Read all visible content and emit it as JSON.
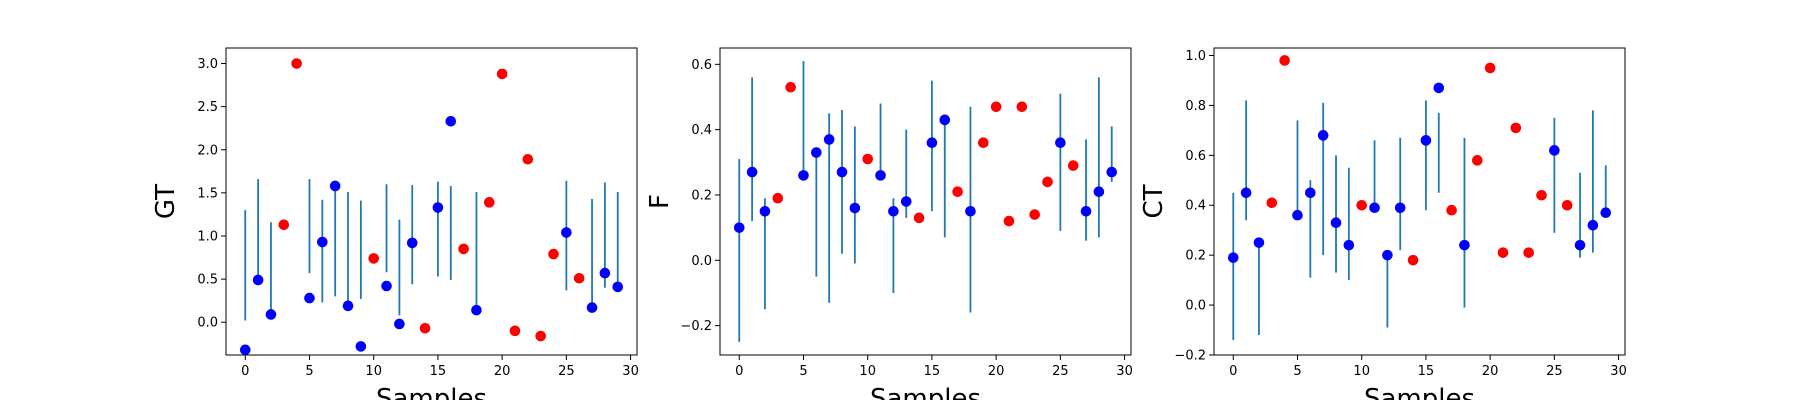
{
  "chart_data": [
    {
      "type": "scatter",
      "ylabel": "GT",
      "xlabel": "Samples",
      "xlim": [
        -1.5,
        30.5
      ],
      "ylim": [
        -0.38,
        3.18
      ],
      "xticks": [
        0,
        5,
        10,
        15,
        20,
        25,
        30
      ],
      "yticks": [
        0.0,
        0.5,
        1.0,
        1.5,
        2.0,
        2.5,
        3.0
      ],
      "ytick_labels": [
        "0.0",
        "0.5",
        "1.0",
        "1.5",
        "2.0",
        "2.5",
        "3.0"
      ],
      "grid": false,
      "colors": {
        "blue": "#0000ff",
        "red": "#ff0000",
        "errorbar": "#1f77b4"
      },
      "x": [
        0,
        1,
        2,
        3,
        4,
        5,
        6,
        7,
        8,
        9,
        10,
        11,
        12,
        13,
        14,
        15,
        16,
        17,
        18,
        19,
        20,
        21,
        22,
        23,
        24,
        25,
        26,
        27,
        28,
        29
      ],
      "y": [
        -0.32,
        0.49,
        0.09,
        1.13,
        3.0,
        0.28,
        0.93,
        1.58,
        0.19,
        -0.28,
        0.74,
        0.42,
        -0.02,
        0.92,
        -0.07,
        1.33,
        2.33,
        0.85,
        0.14,
        1.39,
        2.88,
        -0.1,
        1.89,
        -0.16,
        0.79,
        1.04,
        0.51,
        0.17,
        0.57,
        0.41
      ],
      "point_color": [
        "blue",
        "blue",
        "blue",
        "red",
        "red",
        "blue",
        "blue",
        "blue",
        "blue",
        "blue",
        "red",
        "blue",
        "blue",
        "blue",
        "red",
        "blue",
        "blue",
        "red",
        "blue",
        "red",
        "red",
        "red",
        "red",
        "red",
        "red",
        "blue",
        "red",
        "blue",
        "blue",
        "blue"
      ],
      "errorbars": [
        {
          "x": 0,
          "low": 0.02,
          "high": 1.3
        },
        {
          "x": 1,
          "low": 0.49,
          "high": 1.66
        },
        {
          "x": 2,
          "low": 0.09,
          "high": 1.16
        },
        {
          "x": 5,
          "low": 0.57,
          "high": 1.66
        },
        {
          "x": 6,
          "low": 0.23,
          "high": 1.42
        },
        {
          "x": 7,
          "low": 0.3,
          "high": 1.56
        },
        {
          "x": 8,
          "low": 0.19,
          "high": 1.51
        },
        {
          "x": 9,
          "low": 0.27,
          "high": 1.41
        },
        {
          "x": 11,
          "low": 0.58,
          "high": 1.6
        },
        {
          "x": 12,
          "low": 0.08,
          "high": 1.19
        },
        {
          "x": 13,
          "low": 0.44,
          "high": 1.59
        },
        {
          "x": 15,
          "low": 0.53,
          "high": 1.63
        },
        {
          "x": 16,
          "low": 0.49,
          "high": 1.58
        },
        {
          "x": 18,
          "low": 0.14,
          "high": 1.51
        },
        {
          "x": 25,
          "low": 0.37,
          "high": 1.64
        },
        {
          "x": 27,
          "low": 0.17,
          "high": 1.43
        },
        {
          "x": 28,
          "low": 0.4,
          "high": 1.62
        },
        {
          "x": 29,
          "low": 0.41,
          "high": 1.51
        }
      ]
    },
    {
      "type": "scatter",
      "ylabel": "F",
      "xlabel": "Samples",
      "xlim": [
        -1.5,
        30.5
      ],
      "ylim": [
        -0.29,
        0.65
      ],
      "xticks": [
        0,
        5,
        10,
        15,
        20,
        25,
        30
      ],
      "yticks": [
        -0.2,
        0.0,
        0.2,
        0.4,
        0.6
      ],
      "ytick_labels": [
        "−0.2",
        "0.0",
        "0.2",
        "0.4",
        "0.6"
      ],
      "grid": false,
      "colors": {
        "blue": "#0000ff",
        "red": "#ff0000",
        "errorbar": "#1f77b4"
      },
      "x": [
        0,
        1,
        2,
        3,
        4,
        5,
        6,
        7,
        8,
        9,
        10,
        11,
        12,
        13,
        14,
        15,
        16,
        17,
        18,
        19,
        20,
        21,
        22,
        23,
        24,
        25,
        26,
        27,
        28,
        29
      ],
      "y": [
        0.1,
        0.27,
        0.15,
        0.19,
        0.53,
        0.26,
        0.33,
        0.37,
        0.27,
        0.16,
        0.31,
        0.26,
        0.15,
        0.18,
        0.13,
        0.36,
        0.43,
        0.21,
        0.15,
        0.36,
        0.47,
        0.12,
        0.47,
        0.14,
        0.24,
        0.36,
        0.29,
        0.15,
        0.21,
        0.27
      ],
      "point_color": [
        "blue",
        "blue",
        "blue",
        "red",
        "red",
        "blue",
        "blue",
        "blue",
        "blue",
        "blue",
        "red",
        "blue",
        "blue",
        "blue",
        "red",
        "blue",
        "blue",
        "red",
        "blue",
        "red",
        "red",
        "red",
        "red",
        "red",
        "red",
        "blue",
        "red",
        "blue",
        "blue",
        "blue"
      ],
      "errorbars": [
        {
          "x": 0,
          "low": -0.25,
          "high": 0.31
        },
        {
          "x": 1,
          "low": 0.12,
          "high": 0.56
        },
        {
          "x": 2,
          "low": -0.15,
          "high": 0.19
        },
        {
          "x": 5,
          "low": 0.26,
          "high": 0.61
        },
        {
          "x": 6,
          "low": -0.05,
          "high": 0.34
        },
        {
          "x": 7,
          "low": -0.13,
          "high": 0.45
        },
        {
          "x": 8,
          "low": 0.02,
          "high": 0.46
        },
        {
          "x": 9,
          "low": -0.01,
          "high": 0.41
        },
        {
          "x": 11,
          "low": 0.26,
          "high": 0.48
        },
        {
          "x": 12,
          "low": -0.1,
          "high": 0.19
        },
        {
          "x": 13,
          "low": 0.13,
          "high": 0.4
        },
        {
          "x": 15,
          "low": 0.15,
          "high": 0.55
        },
        {
          "x": 16,
          "low": 0.07,
          "high": 0.44
        },
        {
          "x": 18,
          "low": -0.16,
          "high": 0.47
        },
        {
          "x": 25,
          "low": 0.09,
          "high": 0.51
        },
        {
          "x": 27,
          "low": 0.06,
          "high": 0.37
        },
        {
          "x": 28,
          "low": 0.07,
          "high": 0.56
        },
        {
          "x": 29,
          "low": 0.24,
          "high": 0.41
        }
      ]
    },
    {
      "type": "scatter",
      "ylabel": "CT",
      "xlabel": "Samples",
      "xlim": [
        -1.5,
        30.5
      ],
      "ylim": [
        -0.2,
        1.03
      ],
      "xticks": [
        0,
        5,
        10,
        15,
        20,
        25,
        30
      ],
      "yticks": [
        -0.2,
        0.0,
        0.2,
        0.4,
        0.6,
        0.8,
        1.0
      ],
      "ytick_labels": [
        "−0.2",
        "0.0",
        "0.2",
        "0.4",
        "0.6",
        "0.8",
        "1.0"
      ],
      "grid": false,
      "colors": {
        "blue": "#0000ff",
        "red": "#ff0000",
        "errorbar": "#1f77b4"
      },
      "x": [
        0,
        1,
        2,
        3,
        4,
        5,
        6,
        7,
        8,
        9,
        10,
        11,
        12,
        13,
        14,
        15,
        16,
        17,
        18,
        19,
        20,
        21,
        22,
        23,
        24,
        25,
        26,
        27,
        28,
        29
      ],
      "y": [
        0.19,
        0.45,
        0.25,
        0.41,
        0.98,
        0.36,
        0.45,
        0.68,
        0.33,
        0.24,
        0.4,
        0.39,
        0.2,
        0.39,
        0.18,
        0.66,
        0.87,
        0.38,
        0.24,
        0.58,
        0.95,
        0.21,
        0.71,
        0.21,
        0.44,
        0.62,
        0.4,
        0.24,
        0.32,
        0.37
      ],
      "point_color": [
        "blue",
        "blue",
        "blue",
        "red",
        "red",
        "blue",
        "blue",
        "blue",
        "blue",
        "blue",
        "red",
        "blue",
        "blue",
        "blue",
        "red",
        "blue",
        "blue",
        "red",
        "blue",
        "red",
        "red",
        "red",
        "red",
        "red",
        "red",
        "blue",
        "red",
        "blue",
        "blue",
        "blue"
      ],
      "errorbars": [
        {
          "x": 0,
          "low": -0.14,
          "high": 0.45
        },
        {
          "x": 1,
          "low": 0.34,
          "high": 0.82
        },
        {
          "x": 2,
          "low": -0.12,
          "high": 0.26
        },
        {
          "x": 5,
          "low": 0.36,
          "high": 0.74
        },
        {
          "x": 6,
          "low": 0.11,
          "high": 0.5
        },
        {
          "x": 7,
          "low": 0.2,
          "high": 0.81
        },
        {
          "x": 8,
          "low": 0.13,
          "high": 0.6
        },
        {
          "x": 9,
          "low": 0.1,
          "high": 0.55
        },
        {
          "x": 11,
          "low": 0.39,
          "high": 0.66
        },
        {
          "x": 12,
          "low": -0.09,
          "high": 0.2
        },
        {
          "x": 13,
          "low": 0.22,
          "high": 0.67
        },
        {
          "x": 15,
          "low": 0.38,
          "high": 0.82
        },
        {
          "x": 16,
          "low": 0.45,
          "high": 0.77
        },
        {
          "x": 18,
          "low": -0.01,
          "high": 0.67
        },
        {
          "x": 25,
          "low": 0.29,
          "high": 0.75
        },
        {
          "x": 27,
          "low": 0.19,
          "high": 0.53
        },
        {
          "x": 28,
          "low": 0.21,
          "high": 0.78
        },
        {
          "x": 29,
          "low": 0.37,
          "high": 0.56
        }
      ]
    }
  ]
}
